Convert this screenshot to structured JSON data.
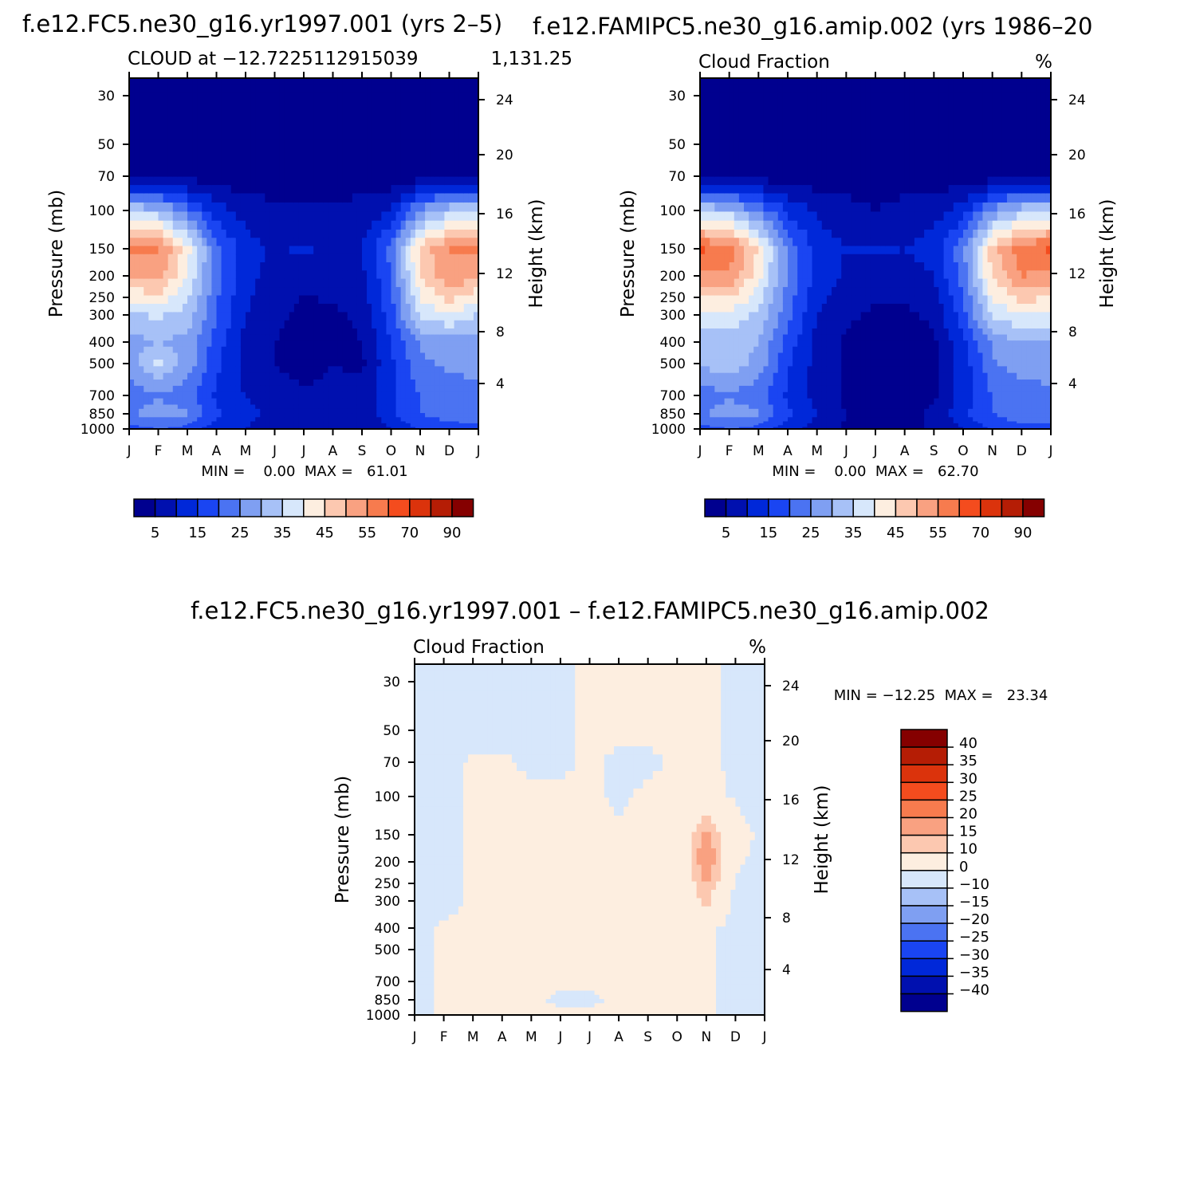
{
  "colors": {
    "abs_scale": [
      "#00008f",
      "#0010af",
      "#0028d9",
      "#1a45f2",
      "#4b73f2",
      "#7f9ff2",
      "#a7c1f7",
      "#d7e7fb",
      "#fdeee0",
      "#fcc8b0",
      "#f9a181",
      "#f77b4e",
      "#f44c1e",
      "#db330c",
      "#b51d05",
      "#850000"
    ],
    "diff_scale": [
      "#00008f",
      "#0010af",
      "#0028d9",
      "#1a45f2",
      "#4b73f2",
      "#7f9ff2",
      "#a7c1f7",
      "#d7e7fb",
      "#fdeee0",
      "#fcc8b0",
      "#f9a181",
      "#f77b4e",
      "#f44c1e",
      "#db330c",
      "#b51d05",
      "#850000"
    ]
  },
  "panels": [
    {
      "title": "f.e12.FC5.ne30_g16.yr1997.001 (yrs 2–5)",
      "left_label": "CLOUD at −12.7225112915039",
      "right_label": "1,131.25",
      "ylabel": "Pressure (mb)",
      "y2label": "Height (km)",
      "minmax": "MIN =    0.00  MAX =   61.01",
      "cb_labels": [
        "5",
        "15",
        "25",
        "35",
        "45",
        "55",
        "70",
        "90"
      ]
    },
    {
      "title": "f.e12.FAMIPC5.ne30_g16.amip.002 (yrs 1986–20",
      "left_label": "Cloud Fraction",
      "right_label": "%",
      "ylabel": "Pressure (mb)",
      "y2label": "Height (km)",
      "minmax": "MIN =    0.00  MAX =   62.70",
      "cb_labels": [
        "5",
        "15",
        "25",
        "35",
        "45",
        "55",
        "70",
        "90"
      ]
    },
    {
      "title": "f.e12.FC5.ne30_g16.yr1997.001 – f.e12.FAMIPC5.ne30_g16.amip.002",
      "left_label": "Cloud Fraction",
      "right_label": "%",
      "ylabel": "Pressure (mb)",
      "y2label": "Height (km)",
      "minmax": "MIN = −12.25  MAX =   23.34",
      "cb_labels": [
        "40",
        "35",
        "30",
        "25",
        "20",
        "15",
        "10",
        "0",
        "−10",
        "−15",
        "−20",
        "−25",
        "−30",
        "−35",
        "−40"
      ]
    }
  ],
  "chart_data": [
    {
      "type": "heatmap",
      "title": "f.e12.FC5.ne30_g16.yr1997.001 (yrs 2–5)",
      "xlabel": "",
      "ylabel": "Pressure (mb)",
      "y2label": "Height (km)",
      "x_ticks": [
        "J",
        "F",
        "M",
        "A",
        "M",
        "J",
        "J",
        "A",
        "S",
        "O",
        "N",
        "D",
        "J"
      ],
      "y_ticks": [
        "30",
        "50",
        "70",
        "100",
        "150",
        "200",
        "250",
        "300",
        "400",
        "500",
        "700",
        "850",
        "1000"
      ],
      "y2_ticks": [
        "24",
        "20",
        "16",
        "12",
        "8",
        "4"
      ],
      "ylim": [
        1000,
        20
      ],
      "min": 0.0,
      "max": 61.01,
      "levels": [
        5,
        10,
        15,
        20,
        25,
        30,
        35,
        40,
        45,
        50,
        55,
        60,
        70,
        80,
        90
      ],
      "months": [
        0,
        1,
        2,
        3,
        4,
        5,
        6,
        7,
        8,
        9,
        10,
        11,
        12
      ],
      "pressures": [
        30,
        50,
        70,
        100,
        150,
        200,
        300,
        400,
        500,
        700,
        850,
        1000
      ],
      "values": [
        [
          1,
          1,
          1,
          1,
          1,
          1,
          1,
          1,
          1,
          1,
          1,
          1,
          1
        ],
        [
          1,
          1,
          1,
          1,
          1,
          1,
          1,
          1,
          1,
          1,
          1,
          1,
          1
        ],
        [
          3,
          3,
          3,
          2,
          2,
          2,
          2,
          2,
          2,
          2,
          2,
          3,
          3
        ],
        [
          34,
          32,
          22,
          12,
          8,
          6,
          6,
          6,
          7,
          10,
          26,
          33,
          34
        ],
        [
          56,
          56,
          42,
          22,
          12,
          9,
          11,
          9,
          10,
          22,
          47,
          55,
          56
        ],
        [
          51,
          52,
          40,
          22,
          12,
          8,
          6,
          7,
          9,
          20,
          45,
          54,
          51
        ],
        [
          34,
          36,
          33,
          20,
          10,
          6,
          4,
          4,
          6,
          18,
          36,
          40,
          34
        ],
        [
          28,
          30,
          28,
          18,
          8,
          5,
          3,
          3,
          5,
          15,
          26,
          28,
          28
        ],
        [
          28,
          36,
          28,
          16,
          8,
          5,
          3,
          5,
          4,
          14,
          24,
          26,
          28
        ],
        [
          22,
          24,
          22,
          14,
          10,
          7,
          6,
          6,
          7,
          14,
          20,
          22,
          22
        ],
        [
          24,
          28,
          26,
          16,
          12,
          8,
          6,
          8,
          6,
          14,
          20,
          22,
          24
        ],
        [
          18,
          20,
          18,
          12,
          10,
          6,
          6,
          6,
          6,
          10,
          16,
          18,
          18
        ]
      ]
    },
    {
      "type": "heatmap",
      "title": "f.e12.FAMIPC5.ne30_g16.amip.002 (yrs 1986–20",
      "xlabel": "",
      "ylabel": "Pressure (mb)",
      "y2label": "Height (km)",
      "x_ticks": [
        "J",
        "F",
        "M",
        "A",
        "M",
        "J",
        "J",
        "A",
        "S",
        "O",
        "N",
        "D",
        "J"
      ],
      "y_ticks": [
        "30",
        "50",
        "70",
        "100",
        "150",
        "200",
        "250",
        "300",
        "400",
        "500",
        "700",
        "850",
        "1000"
      ],
      "y2_ticks": [
        "24",
        "20",
        "16",
        "12",
        "8",
        "4"
      ],
      "ylim": [
        1000,
        20
      ],
      "min": 0.0,
      "max": 62.7,
      "levels": [
        5,
        10,
        15,
        20,
        25,
        30,
        35,
        40,
        45,
        50,
        55,
        60,
        70,
        80,
        90
      ],
      "months": [
        0,
        1,
        2,
        3,
        4,
        5,
        6,
        7,
        8,
        9,
        10,
        11,
        12
      ],
      "pressures": [
        30,
        50,
        70,
        100,
        150,
        200,
        300,
        400,
        500,
        700,
        850,
        1000
      ],
      "values": [
        [
          1,
          1,
          1,
          1,
          1,
          1,
          1,
          1,
          1,
          1,
          1,
          1,
          1
        ],
        [
          1,
          1,
          1,
          1,
          1,
          1,
          1,
          1,
          1,
          1,
          1,
          1,
          1
        ],
        [
          3,
          3,
          3,
          2,
          2,
          2,
          2,
          2,
          2,
          2,
          2,
          3,
          3
        ],
        [
          34,
          32,
          24,
          14,
          9,
          7,
          5,
          7,
          8,
          12,
          26,
          33,
          34
        ],
        [
          61,
          58,
          44,
          24,
          13,
          10,
          11,
          10,
          12,
          24,
          48,
          58,
          61
        ],
        [
          54,
          54,
          42,
          24,
          13,
          9,
          7,
          8,
          10,
          22,
          46,
          55,
          54
        ],
        [
          38,
          38,
          34,
          22,
          10,
          6,
          4,
          4,
          6,
          18,
          36,
          40,
          38
        ],
        [
          30,
          32,
          30,
          18,
          8,
          4,
          3,
          3,
          4,
          14,
          26,
          30,
          30
        ],
        [
          30,
          34,
          28,
          16,
          8,
          4,
          3,
          3,
          4,
          12,
          24,
          28,
          30
        ],
        [
          22,
          24,
          22,
          14,
          8,
          4,
          3,
          3,
          4,
          12,
          20,
          22,
          22
        ],
        [
          24,
          28,
          26,
          16,
          10,
          5,
          3,
          3,
          6,
          14,
          20,
          24,
          24
        ],
        [
          18,
          20,
          18,
          12,
          8,
          4,
          3,
          3,
          6,
          10,
          16,
          18,
          18
        ]
      ]
    },
    {
      "type": "heatmap",
      "title": "f.e12.FC5.ne30_g16.yr1997.001 – f.e12.FAMIPC5.ne30_g16.amip.002",
      "xlabel": "",
      "ylabel": "Pressure (mb)",
      "y2label": "Height (km)",
      "x_ticks": [
        "J",
        "F",
        "M",
        "A",
        "M",
        "J",
        "J",
        "A",
        "S",
        "O",
        "N",
        "D",
        "J"
      ],
      "y_ticks": [
        "30",
        "50",
        "70",
        "100",
        "150",
        "200",
        "250",
        "300",
        "400",
        "500",
        "700",
        "850",
        "1000"
      ],
      "y2_ticks": [
        "24",
        "20",
        "16",
        "12",
        "8",
        "4"
      ],
      "ylim": [
        1000,
        20
      ],
      "min": -12.25,
      "max": 23.34,
      "levels": [
        -40,
        -35,
        -30,
        -25,
        -20,
        -15,
        -10,
        0,
        10,
        15,
        20,
        25,
        30,
        35,
        40
      ],
      "months": [
        0,
        1,
        2,
        3,
        4,
        5,
        6,
        7,
        8,
        9,
        10,
        11,
        12
      ],
      "pressures": [
        30,
        50,
        70,
        100,
        150,
        200,
        300,
        400,
        500,
        700,
        850,
        1000
      ],
      "values": [
        [
          -2,
          -2,
          -2,
          -2,
          -2,
          -1,
          1,
          1,
          1,
          1,
          1,
          -1,
          -2
        ],
        [
          -2,
          -2,
          -2,
          -2,
          -2,
          -1,
          1,
          1,
          1,
          1,
          1,
          -1,
          -2
        ],
        [
          -2,
          -2,
          1,
          1,
          -1,
          -1,
          1,
          -1,
          -1,
          1,
          1,
          -1,
          -2
        ],
        [
          -2,
          -2,
          1,
          1,
          1,
          1,
          1,
          -1,
          1,
          1,
          3,
          -1,
          -2
        ],
        [
          -2,
          -2,
          1,
          1,
          1,
          1,
          1,
          1,
          1,
          1,
          18,
          3,
          -2
        ],
        [
          -2,
          -2,
          1,
          1,
          1,
          1,
          1,
          1,
          1,
          1,
          21,
          1,
          -2
        ],
        [
          -2,
          -2,
          1,
          1,
          1,
          1,
          1,
          1,
          1,
          1,
          12,
          -2,
          -2
        ],
        [
          -2,
          1,
          1,
          1,
          1,
          1,
          1,
          1,
          1,
          1,
          1,
          -2,
          -2
        ],
        [
          -2,
          1,
          1,
          1,
          1,
          1,
          1,
          1,
          1,
          1,
          1,
          -2,
          -2
        ],
        [
          -2,
          1,
          1,
          1,
          1,
          1,
          1,
          1,
          1,
          1,
          1,
          -2,
          -2
        ],
        [
          -2,
          1,
          1,
          1,
          1,
          -1,
          -1,
          1,
          1,
          1,
          1,
          -2,
          -2
        ],
        [
          -2,
          1,
          1,
          1,
          1,
          1,
          1,
          1,
          1,
          1,
          1,
          -2,
          -2
        ]
      ]
    }
  ]
}
